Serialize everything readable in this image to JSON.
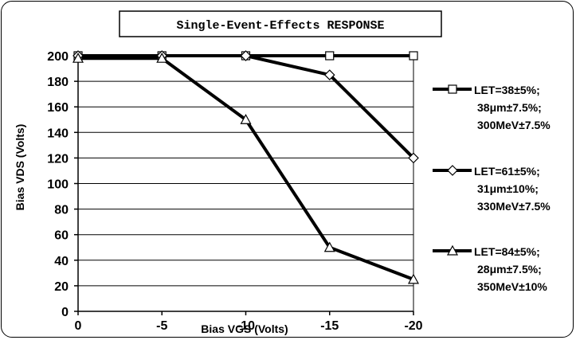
{
  "chart_data": {
    "type": "line",
    "title": "Single-Event-Effects RESPONSE",
    "xlabel": "Bias VGS (Volts)",
    "ylabel": "Bias VDS (Volts)",
    "x": [
      0,
      -5,
      -10,
      -15,
      -20
    ],
    "x_tick_labels": [
      "0",
      "-5",
      "-10",
      "-15",
      "-20"
    ],
    "xlim": [
      0,
      -20
    ],
    "ylim": [
      0,
      200
    ],
    "y_ticks": [
      0,
      20,
      40,
      60,
      80,
      100,
      120,
      140,
      160,
      180,
      200
    ],
    "grid": "horizontal",
    "legend_placement": "right",
    "series": [
      {
        "name_lines": [
          "LET=38±5%;",
          "38μm±7.5%;",
          "300MeV±7.5%"
        ],
        "marker": "square",
        "values": [
          200,
          200,
          200,
          200,
          200
        ]
      },
      {
        "name_lines": [
          "LET=61±5%;",
          "31μm±10%;",
          "330MeV±7.5%"
        ],
        "marker": "diamond",
        "values": [
          200,
          200,
          200,
          185,
          120
        ]
      },
      {
        "name_lines": [
          "LET=84±5%;",
          "28μm±7.5%;",
          "350MeV±10%"
        ],
        "marker": "triangle",
        "values": [
          198,
          198,
          150,
          50,
          25
        ]
      }
    ]
  }
}
